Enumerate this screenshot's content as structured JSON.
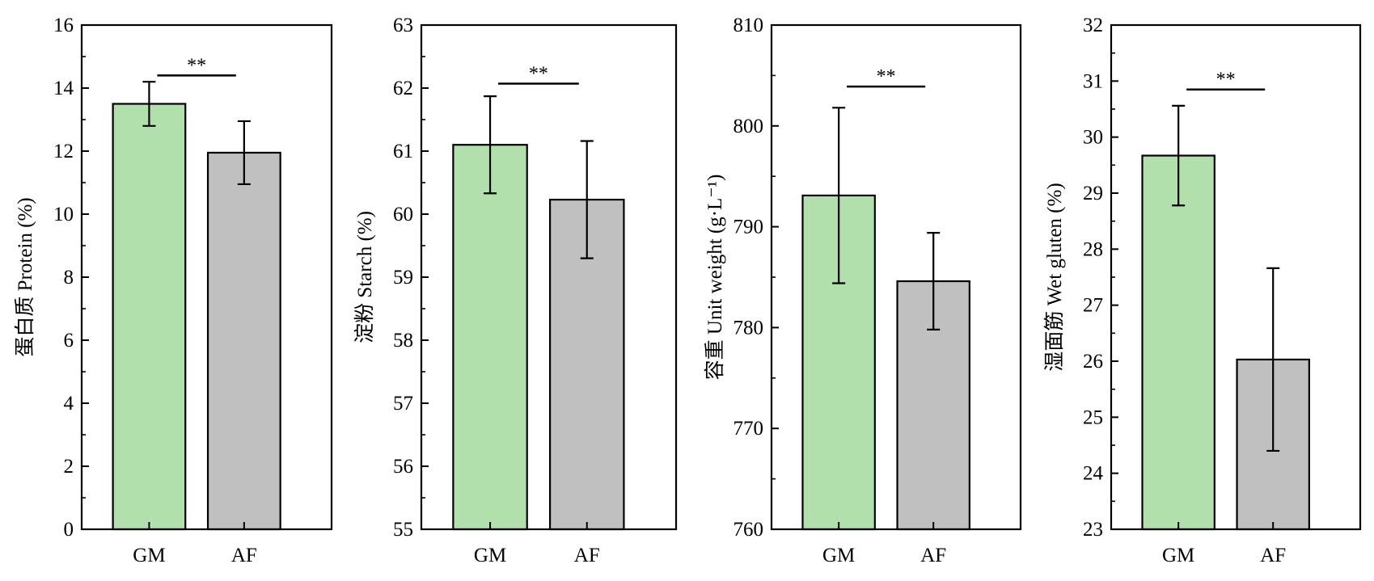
{
  "colors": {
    "GM": "#b2e0ac",
    "AF": "#c0c0c0"
  },
  "chart_data": [
    {
      "type": "bar",
      "categories": [
        "GM",
        "AF"
      ],
      "values": [
        13.5,
        11.95
      ],
      "errors": [
        0.7,
        1.0
      ],
      "ylabel": "蛋白质 Protein (%)",
      "ylim": [
        0,
        16
      ],
      "yticks": [
        "0",
        "2",
        "4",
        "6",
        "8",
        "10",
        "12",
        "14",
        "16"
      ],
      "significance": {
        "label": "**",
        "y": 14.4
      },
      "grid": false
    },
    {
      "type": "bar",
      "categories": [
        "GM",
        "AF"
      ],
      "values": [
        61.1,
        60.23
      ],
      "errors": [
        0.77,
        0.93
      ],
      "ylabel": "淀粉 Starch (%)",
      "ylim": [
        55,
        63
      ],
      "yticks": [
        "55",
        "56",
        "57",
        "58",
        "59",
        "60",
        "61",
        "62",
        "63"
      ],
      "significance": {
        "label": "**",
        "y": 62.07
      },
      "grid": false
    },
    {
      "type": "bar",
      "categories": [
        "GM",
        "AF"
      ],
      "values": [
        793.1,
        784.6
      ],
      "errors": [
        8.7,
        4.8
      ],
      "ylabel": "容重 Unit weight (g·L⁻¹)",
      "ylim": [
        760,
        810
      ],
      "yticks": [
        "760",
        "770",
        "780",
        "790",
        "800",
        "810"
      ],
      "significance": {
        "label": "**",
        "y": 803.9
      },
      "grid": false
    },
    {
      "type": "bar",
      "categories": [
        "GM",
        "AF"
      ],
      "values": [
        29.67,
        26.03
      ],
      "errors": [
        0.89,
        1.63
      ],
      "ylabel": "湿面筋 Wet gluten (%)",
      "ylim": [
        23,
        32
      ],
      "yticks": [
        "23",
        "24",
        "25",
        "26",
        "27",
        "28",
        "29",
        "30",
        "31",
        "32"
      ],
      "significance": {
        "label": "**",
        "y": 30.85
      },
      "grid": false
    }
  ]
}
